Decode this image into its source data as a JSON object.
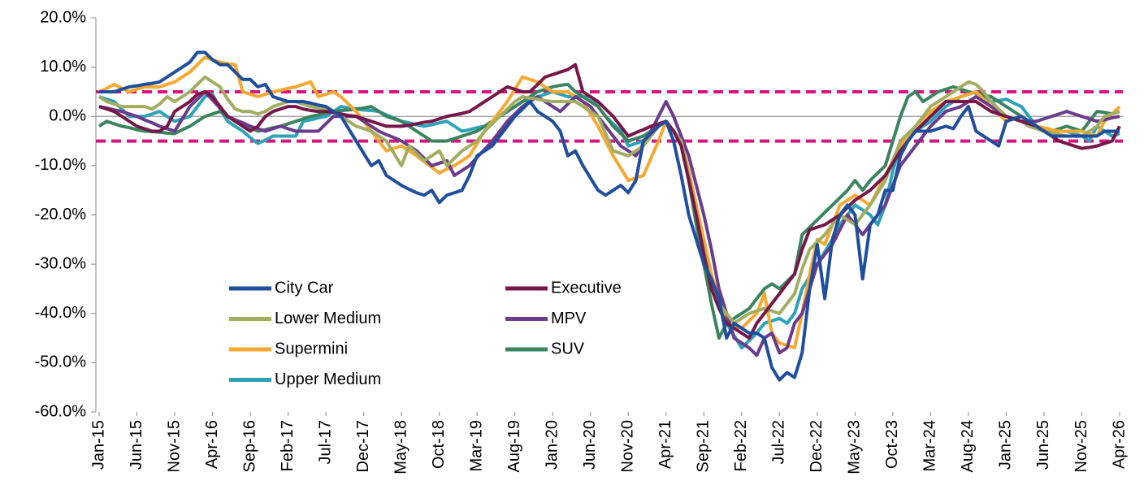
{
  "chart_data": {
    "type": "line",
    "categories": [
      "Jan-15",
      null,
      null,
      null,
      null,
      "Jun-15",
      null,
      null,
      null,
      null,
      "Nov-15",
      null,
      null,
      null,
      null,
      "Apr-16",
      null,
      null,
      null,
      null,
      "Sep-16",
      null,
      null,
      null,
      null,
      "Feb-17",
      null,
      null,
      null,
      null,
      "Jul-17",
      null,
      null,
      null,
      null,
      "Dec-17",
      null,
      null,
      null,
      null,
      "May-18",
      null,
      null,
      null,
      null,
      "Oct-18",
      null,
      null,
      null,
      null,
      "Mar-19",
      null,
      null,
      null,
      null,
      "Aug-19",
      null,
      null,
      null,
      null,
      "Jan-20",
      null,
      null,
      null,
      null,
      "Jun-20",
      null,
      null,
      null,
      null,
      "Nov-20",
      null,
      null,
      null,
      null,
      "Apr-21",
      null,
      null,
      null,
      null,
      "Sep-21",
      null,
      null,
      null,
      null,
      "Feb-22",
      null,
      null,
      null,
      null,
      "Jul-22",
      null,
      null,
      null,
      null,
      "Dec-22",
      null,
      null,
      null,
      null,
      "May-23",
      null,
      null,
      null,
      null,
      "Oct-23",
      null,
      null,
      null,
      null,
      "Mar-24",
      null,
      null,
      null,
      null,
      "Aug-24",
      null,
      null,
      null,
      null,
      "Jan-25",
      null,
      null,
      null,
      null,
      "Jun-25",
      null,
      null,
      null,
      null,
      "Nov-25",
      null,
      null,
      null,
      null,
      "Apr-26"
    ],
    "series": [
      {
        "name": "City Car",
        "color": "#1f4e9c",
        "values": [
          5,
          5,
          5,
          5.5,
          6,
          6.2,
          6.5,
          6.7,
          7,
          8,
          9,
          10,
          11,
          13,
          13,
          11.5,
          10.5,
          10.5,
          9,
          7.5,
          7.5,
          6,
          6.5,
          4,
          3.5,
          3,
          3,
          3,
          2.7,
          2.3,
          2,
          1,
          0,
          -2.5,
          -5,
          -7.5,
          -10,
          -9,
          -12,
          -13,
          -14,
          -14.8,
          -15.5,
          -16,
          -15,
          -17.5,
          -16,
          -15.5,
          -15,
          -12,
          -8,
          -7,
          -6,
          -4,
          -2,
          0,
          1.5,
          3,
          1,
          0,
          -1,
          -3,
          -8,
          -7,
          -10,
          -12.5,
          -15,
          -16,
          -15,
          -14,
          -15.5,
          -13,
          -5,
          -3.5,
          -2,
          -1,
          -5,
          -12,
          -20,
          -25,
          -30,
          -33,
          -37,
          -45,
          -42,
          -43,
          -44,
          -44,
          -45,
          -51,
          -53.5,
          -52,
          -53,
          -48,
          -35,
          -26,
          -37,
          -25,
          -20,
          -18,
          -20,
          -33,
          -22,
          -20,
          -15,
          -15,
          -8,
          -5,
          -3,
          -3,
          -3,
          -2.5,
          -2,
          -2.5,
          0,
          2,
          -3,
          -4,
          -5,
          -6,
          -1,
          -0.5,
          0,
          -1,
          -2,
          -3,
          -4,
          -4,
          -4,
          -4,
          -4,
          -4,
          -4,
          -3,
          -3,
          -3
        ]
      },
      {
        "name": "Executive",
        "color": "#76174a",
        "values": [
          2,
          1.5,
          1,
          0,
          -1,
          -2,
          -2.5,
          -3,
          -3,
          -2,
          1,
          2,
          3,
          4.5,
          5,
          4,
          2,
          0,
          -1,
          -2,
          -3,
          -2,
          0,
          1,
          1.5,
          2,
          2,
          1.5,
          1.2,
          1,
          1,
          0.8,
          0.5,
          0.2,
          0,
          -0.5,
          -1,
          -1.5,
          -2,
          -2,
          -2,
          -1.8,
          -1.5,
          -1.2,
          -1,
          -0.5,
          0,
          0.3,
          0.6,
          1,
          2,
          3,
          4,
          5,
          6,
          5.5,
          5,
          5,
          6.5,
          8,
          8.5,
          9,
          9.5,
          10.5,
          5,
          4,
          3,
          1.5,
          0,
          -2,
          -4,
          -3.3,
          -2.7,
          -2,
          -1.5,
          -1,
          -3,
          -6,
          -13,
          -20,
          -28,
          -35,
          -39,
          -42,
          -43,
          -44,
          -45,
          -42,
          -40,
          -38,
          -36,
          -34,
          -32,
          -27,
          -23,
          -22.5,
          -22,
          -21,
          -20,
          -18.5,
          -17,
          -16,
          -15,
          -13.5,
          -12,
          -9.5,
          -7,
          -5,
          -3,
          -1.5,
          0,
          1.5,
          3,
          3,
          3,
          3,
          3,
          2,
          1,
          0.5,
          0,
          -0.5,
          -1,
          -1.5,
          -2,
          -3,
          -4,
          -5,
          -5.5,
          -6,
          -6.5,
          -6.3,
          -6,
          -5.5,
          -5,
          -2
        ]
      },
      {
        "name": "Lower Medium",
        "color": "#a3ad62",
        "values": [
          4,
          3,
          2.5,
          2,
          2,
          2,
          2,
          1.5,
          2.5,
          4,
          3,
          4,
          5,
          6.5,
          8,
          7,
          6,
          3.5,
          1.5,
          1,
          1,
          0.5,
          1,
          2,
          2.5,
          3,
          3,
          2.5,
          2,
          1.7,
          1.3,
          1,
          0,
          -1,
          -2,
          -2.5,
          -3,
          -4,
          -5,
          -7.5,
          -10,
          -6,
          -7.5,
          -9,
          -8,
          -7,
          -10,
          -8.5,
          -7,
          -6,
          -5,
          -3,
          -1.5,
          0,
          1.5,
          3,
          4,
          3.7,
          3.5,
          3.2,
          3,
          3,
          3,
          3,
          2,
          1,
          0,
          -3.5,
          -7,
          -7.5,
          -8,
          -7,
          -6,
          -4,
          -2,
          -1,
          -3,
          -5,
          -12,
          -20,
          -27,
          -34,
          -38,
          -40,
          -42,
          -41,
          -40,
          -39.5,
          -39,
          -39.5,
          -40,
          -38,
          -36,
          -31,
          -27,
          -25.5,
          -24,
          -22,
          -20,
          -21,
          -22,
          -20,
          -18,
          -15.5,
          -13,
          -9,
          -5,
          -3.5,
          -2,
          0,
          2,
          3,
          4,
          5,
          6,
          7,
          6.5,
          5,
          3,
          1.5,
          0,
          -0.5,
          -1,
          -2,
          -2.5,
          -3,
          -3.3,
          -3.7,
          -4,
          -4,
          -4,
          -3,
          -2,
          0,
          0.5,
          1
        ]
      },
      {
        "name": "MPV",
        "color": "#6b3b8c",
        "values": [
          2,
          1.7,
          1.3,
          1,
          0.5,
          0,
          -0.7,
          -1.3,
          -2,
          -2.5,
          -3,
          -0.5,
          2,
          3.5,
          5,
          3.3,
          1.7,
          0,
          -0.7,
          -1.3,
          -2,
          -2.5,
          -3,
          -2.5,
          -2,
          -2.5,
          -3,
          -3,
          -3,
          -3,
          -1.5,
          0,
          0,
          0,
          0,
          -1,
          -2,
          -3,
          -3.7,
          -4.3,
          -5,
          -6,
          -7,
          -8.5,
          -10,
          -9.5,
          -9,
          -12,
          -11,
          -10,
          -8.3,
          -6.7,
          -5,
          -3,
          -1,
          0.5,
          2,
          3,
          4,
          3,
          2,
          1,
          2.5,
          4,
          3,
          2,
          0,
          -2,
          -4,
          -6,
          -7,
          -8,
          -5.5,
          -3,
          0,
          3,
          0,
          -4,
          -8,
          -14,
          -20,
          -27,
          -35,
          -40,
          -45,
          -46,
          -47,
          -48.5,
          -45,
          -44,
          -48,
          -47,
          -42,
          -40,
          -35,
          -30,
          -28,
          -26,
          -23,
          -20,
          -22,
          -24,
          -22,
          -20,
          -18,
          -14,
          -10,
          -8,
          -6,
          -4,
          -2,
          -0.5,
          1,
          1.5,
          2,
          3,
          4,
          3,
          2,
          1,
          0,
          -0.5,
          -1,
          -1,
          -1,
          -0.5,
          0,
          0.5,
          1,
          0.5,
          0,
          -0.5,
          -1,
          -0.7,
          -0.3,
          0
        ]
      },
      {
        "name": "Supermini",
        "color": "#f6a930",
        "values": [
          5,
          5.7,
          6.5,
          5.7,
          5,
          5.5,
          6,
          6,
          6,
          6.5,
          7,
          8,
          9,
          10.5,
          12,
          11.5,
          11,
          10.7,
          10.5,
          5,
          4.5,
          4,
          4.5,
          5,
          5.3,
          5.7,
          6,
          6.5,
          7,
          4,
          4.5,
          5,
          4,
          2.5,
          1,
          -1,
          -3,
          -5,
          -7,
          -6.5,
          -6,
          -7,
          -8,
          -9.2,
          -10.3,
          -11.5,
          -10.7,
          -10,
          -9,
          -8,
          -5.5,
          -3,
          -1,
          1,
          3,
          5.5,
          8,
          7.5,
          7,
          6,
          5,
          5,
          5,
          4,
          3,
          0.5,
          -2,
          -5,
          -8,
          -10.5,
          -13,
          -12.5,
          -12,
          -8.5,
          -5,
          -1,
          -3,
          -5,
          -11,
          -18,
          -25,
          -32,
          -37,
          -42,
          -42.5,
          -43,
          -41.5,
          -40,
          -36,
          -44,
          -46,
          -46.5,
          -47,
          -40,
          -32,
          -25,
          -26,
          -22,
          -18,
          -17,
          -16,
          -17,
          -18,
          -15,
          -12,
          -9,
          -6,
          -4,
          -2,
          -0.5,
          1,
          2,
          3,
          3.5,
          4,
          4.5,
          5,
          3.5,
          2,
          0.5,
          -1,
          -0.5,
          0,
          -1,
          -2,
          -2.3,
          -2.7,
          -3,
          -3,
          -3,
          -3,
          -3.5,
          -4,
          -1,
          0.5,
          2
        ]
      },
      {
        "name": "SUV",
        "color": "#3b8460",
        "values": [
          -2,
          -1,
          -1.5,
          -2,
          -2.3,
          -2.7,
          -3,
          -3.1,
          -3.2,
          -3.4,
          -3.5,
          -2.7,
          -2,
          -1,
          0,
          0.5,
          1,
          0,
          -1,
          -1.7,
          -2.3,
          -3,
          -2.7,
          -2.3,
          -2,
          -1.5,
          -1,
          -0.5,
          0,
          0.3,
          0.7,
          1,
          1.2,
          1.3,
          1.5,
          1.7,
          2,
          1,
          0,
          -0.5,
          -1,
          -2,
          -3,
          -4,
          -5,
          -5,
          -5,
          -4.5,
          -4,
          -3.5,
          -3,
          -2,
          -1,
          0,
          1,
          2,
          3,
          4,
          5,
          5.5,
          6,
          6.3,
          6.5,
          5,
          4,
          3,
          2,
          0,
          -2,
          -3.5,
          -5,
          -4.5,
          -4,
          -3,
          -2,
          -1,
          -3,
          -5,
          -13,
          -22,
          -30,
          -38,
          -45,
          -42,
          -41,
          -40,
          -39,
          -37,
          -35,
          -34,
          -35,
          -33.5,
          -32,
          -24,
          -22.5,
          -21,
          -19.5,
          -18,
          -16.5,
          -15,
          -13,
          -15,
          -13,
          -11.5,
          -10,
          -5,
          0,
          4,
          5,
          3,
          4,
          5,
          5.5,
          6,
          5.5,
          5,
          4.7,
          4.3,
          4,
          3,
          2,
          1,
          0,
          -1,
          -2,
          -2.5,
          -3,
          -2.5,
          -2,
          -2.5,
          -3,
          -1,
          1,
          0.8,
          0.5,
          1
        ]
      },
      {
        "name": "Upper Medium",
        "color": "#2ea3b8",
        "values": [
          4,
          3.5,
          3,
          1.5,
          0,
          0,
          0,
          0.5,
          1,
          0,
          -1,
          -0.5,
          0,
          2,
          4,
          4.5,
          1.5,
          -1,
          -2,
          -3,
          -4.3,
          -5.5,
          -4.8,
          -4,
          -4,
          -4,
          -4,
          -1,
          -0.7,
          -0.3,
          0,
          1,
          2,
          1.7,
          1.5,
          1.3,
          1.2,
          1,
          0.3,
          -0.3,
          -1,
          -1.3,
          -1.7,
          -2,
          -1.7,
          -1.3,
          -1,
          -2,
          -3,
          -2.7,
          -2.3,
          -2,
          -1,
          0,
          1,
          2,
          3,
          3.5,
          4,
          4.5,
          5,
          4.5,
          4,
          4,
          4,
          4,
          2,
          0,
          -1.5,
          -3,
          -6,
          -5.5,
          -5,
          -3.5,
          -2,
          -1,
          -3,
          -5,
          -12,
          -20,
          -27,
          -35,
          -38,
          -42,
          -44.5,
          -47,
          -45.5,
          -44,
          -42,
          -41.5,
          -41,
          -42,
          -40,
          -35,
          -32.5,
          -30,
          -27.5,
          -25,
          -22,
          -20,
          -18,
          -19,
          -20,
          -22,
          -18,
          -11,
          -6,
          -4.5,
          -3,
          -2,
          -1,
          0.5,
          2,
          3,
          4,
          4.5,
          5,
          4,
          3,
          3.2,
          3.5,
          2.7,
          2,
          0,
          -2,
          -2.5,
          -3,
          -3,
          -3,
          -3.5,
          -4,
          -5,
          -2,
          -3,
          -4,
          -3.5
        ]
      }
    ],
    "reference_lines": {
      "values": [
        5,
        -5
      ],
      "color": "#d6137f",
      "style": "dashed"
    },
    "ylim": [
      -60,
      20
    ],
    "yticks": [
      {
        "value": -60,
        "label": "-60.0%"
      },
      {
        "value": -50,
        "label": "-50.0%"
      },
      {
        "value": -40,
        "label": "-40.0%"
      },
      {
        "value": -30,
        "label": "-30.0%"
      },
      {
        "value": -20,
        "label": "-20.0%"
      },
      {
        "value": -10,
        "label": "-10.0%"
      },
      {
        "value": 0,
        "label": "0.0%"
      },
      {
        "value": 10,
        "label": "10.0%"
      },
      {
        "value": 20,
        "label": "20.0%"
      }
    ],
    "legend": "lower left",
    "grid": false
  }
}
